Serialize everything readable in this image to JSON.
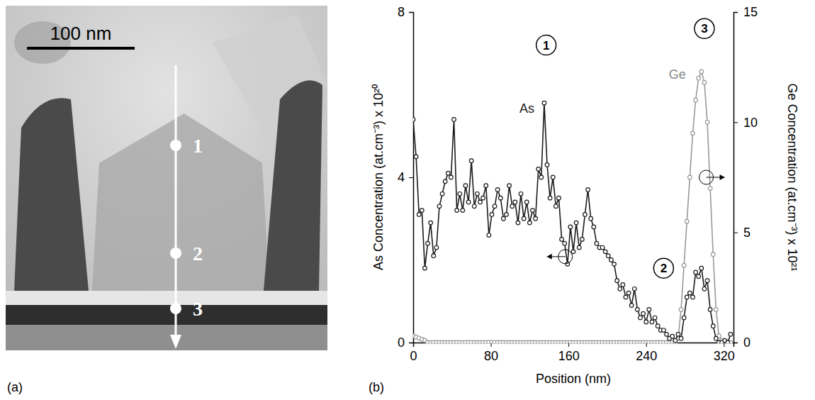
{
  "panel_a": {
    "panel_label": "(a)",
    "scale_bar": "100 nm",
    "points": [
      "1",
      "2",
      "3"
    ]
  },
  "chart_data": {
    "type": "line",
    "panel_label": "(b)",
    "x_label": "Position (nm)",
    "y_label": "As Concentration (at.cm⁻³) x 10²⁰",
    "y2_label": "Ge Concentration (at.cm⁻³) x 10²¹",
    "xlim": [
      0,
      330
    ],
    "xticks": [
      0,
      80,
      160,
      240,
      320
    ],
    "ylim": [
      0,
      8
    ],
    "yticks": [
      0,
      4,
      8
    ],
    "y2lim": [
      0,
      15
    ],
    "y2ticks": [
      0,
      5,
      10,
      15
    ],
    "x": [
      0,
      3,
      6,
      9,
      12,
      15,
      18,
      21,
      24,
      27,
      30,
      33,
      36,
      39,
      42,
      45,
      48,
      51,
      54,
      57,
      60,
      63,
      66,
      69,
      72,
      75,
      78,
      81,
      84,
      87,
      90,
      93,
      96,
      99,
      102,
      105,
      108,
      111,
      114,
      117,
      120,
      123,
      126,
      129,
      132,
      135,
      138,
      141,
      144,
      147,
      150,
      153,
      156,
      159,
      162,
      165,
      168,
      171,
      174,
      177,
      180,
      183,
      186,
      189,
      192,
      195,
      198,
      201,
      204,
      207,
      210,
      213,
      216,
      219,
      222,
      225,
      228,
      231,
      234,
      237,
      240,
      243,
      246,
      249,
      252,
      255,
      258,
      261,
      264,
      267,
      270,
      273,
      276,
      279,
      282,
      285,
      288,
      291,
      294,
      297,
      300,
      303,
      306,
      309,
      312,
      315,
      318,
      321,
      324,
      327
    ],
    "series": [
      {
        "name": "As",
        "color": "#1a1a1a",
        "marker": "circle",
        "axis": "y",
        "values": [
          5.4,
          4.5,
          3.1,
          3.2,
          1.8,
          2.4,
          2.9,
          2.1,
          2.3,
          3.3,
          3.6,
          3.9,
          4.1,
          4.0,
          5.4,
          3.2,
          3.6,
          3.2,
          3.8,
          3.4,
          4.4,
          3.3,
          3.6,
          3.4,
          3.5,
          3.8,
          2.6,
          3.1,
          3.3,
          3.7,
          3.5,
          3.0,
          3.1,
          3.8,
          3.3,
          3.4,
          2.9,
          3.6,
          3.0,
          3.4,
          2.9,
          3.2,
          3.0,
          4.2,
          4.0,
          5.8,
          4.3,
          3.5,
          4.0,
          3.3,
          3.5,
          2.5,
          2.4,
          1.9,
          2.8,
          2.2,
          2.9,
          2.3,
          2.5,
          3.1,
          3.7,
          3.0,
          2.8,
          2.4,
          2.3,
          2.3,
          2.2,
          2.1,
          2.0,
          1.9,
          1.5,
          1.3,
          1.4,
          1.1,
          1.2,
          0.9,
          1.3,
          0.8,
          0.6,
          0.7,
          0.5,
          0.8,
          0.5,
          0.6,
          0.4,
          0.3,
          0.3,
          0.2,
          0.1,
          0.15,
          0.05,
          0.2,
          0.1,
          0.6,
          1.1,
          1.2,
          1.1,
          1.7,
          1.6,
          1.8,
          1.3,
          1.5,
          0.8,
          0.4,
          0.1,
          0,
          0,
          0.05,
          0,
          0.2
        ]
      },
      {
        "name": "Ge",
        "color": "#999999",
        "marker": "circle",
        "axis": "y2",
        "values": [
          0.3,
          0.25,
          0.2,
          0.15,
          0.1,
          0,
          0,
          0,
          0,
          0,
          0,
          0,
          0,
          0,
          0,
          0,
          0,
          0,
          0,
          0,
          0,
          0,
          0,
          0,
          0,
          0,
          0,
          0,
          0,
          0,
          0,
          0,
          0,
          0,
          0,
          0,
          0,
          0,
          0,
          0,
          0,
          0,
          0,
          0,
          0,
          0,
          0,
          0,
          0,
          0,
          0,
          0,
          0,
          0,
          0,
          0,
          0,
          0,
          0,
          0,
          0,
          0,
          0,
          0,
          0,
          0,
          0,
          0,
          0,
          0,
          0,
          0,
          0,
          0,
          0,
          0,
          0,
          0,
          0,
          0,
          0,
          0,
          0,
          0,
          0,
          0,
          0,
          0,
          0,
          0,
          0,
          0.2,
          1.5,
          3.5,
          5.5,
          7.5,
          9.5,
          11,
          12,
          12.3,
          11.8,
          10,
          7,
          4,
          1.5,
          0.3,
          0.1,
          0,
          0,
          0
        ]
      }
    ],
    "annotations": [
      {
        "text": "1",
        "x": 137,
        "y": 7.2
      },
      {
        "text": "2",
        "x": 258,
        "y": 1.8
      },
      {
        "text": "3",
        "x": 300,
        "y": 7.6
      }
    ]
  }
}
